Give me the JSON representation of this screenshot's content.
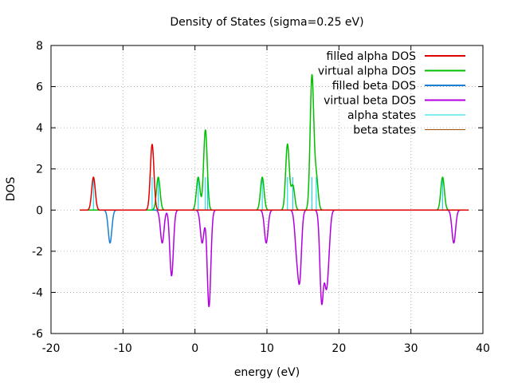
{
  "chart_data": {
    "type": "line",
    "title": "Density of States (sigma=0.25 eV)",
    "xlabel": "energy (eV)",
    "ylabel": "DOS",
    "xlim": [
      -20,
      40
    ],
    "ylim": [
      -6,
      8
    ],
    "x_ticks": [
      -20,
      -10,
      0,
      10,
      20,
      30,
      40
    ],
    "y_ticks": [
      -6,
      -4,
      -2,
      0,
      2,
      4,
      6,
      8
    ],
    "grid": "dotted",
    "legend_position": "top-right",
    "x_range_plotted": [
      -16,
      38
    ],
    "sigma": 0.25,
    "series": [
      {
        "name": "filled alpha DOS",
        "color": "#e00000",
        "style": "line",
        "peaks": [
          {
            "center": -14.1,
            "height": 1.6
          },
          {
            "center": -5.95,
            "height": 3.2
          }
        ]
      },
      {
        "name": "virtual alpha DOS",
        "color": "#00c000",
        "style": "line",
        "peaks": [
          {
            "center": -5.1,
            "height": 1.6
          },
          {
            "center": 0.45,
            "height": 1.6
          },
          {
            "center": 1.45,
            "height": 3.9
          },
          {
            "center": 9.35,
            "height": 1.6
          },
          {
            "center": 12.85,
            "height": 3.2
          },
          {
            "center": 13.6,
            "height": 1.2
          },
          {
            "center": 16.25,
            "height": 6.5
          },
          {
            "center": 16.85,
            "height": 1.6
          },
          {
            "center": 34.4,
            "height": 1.6
          }
        ]
      },
      {
        "name": "filled beta DOS",
        "color": "#1a7fd4",
        "style": "line",
        "peaks": [
          {
            "center": -11.8,
            "height": -1.6
          }
        ]
      },
      {
        "name": "virtual beta DOS",
        "color": "#b000e0",
        "style": "line",
        "peaks": [
          {
            "center": -4.55,
            "height": -1.6
          },
          {
            "center": -3.25,
            "height": -3.2
          },
          {
            "center": 1.0,
            "height": -1.6
          },
          {
            "center": 1.95,
            "height": -4.7
          },
          {
            "center": 9.9,
            "height": -1.6
          },
          {
            "center": 14.1,
            "height": -1.7
          },
          {
            "center": 14.55,
            "height": -3.2
          },
          {
            "center": 17.6,
            "height": -4.4
          },
          {
            "center": 18.2,
            "height": -3.0
          },
          {
            "center": 18.55,
            "height": -1.6
          },
          {
            "center": 35.95,
            "height": -1.6
          }
        ]
      },
      {
        "name": "alpha states",
        "color": "#00d8e8",
        "style": "impulses",
        "x": [
          -14.1,
          -5.95,
          -5.1,
          0.45,
          1.45,
          1.75,
          9.35,
          12.85,
          13.6,
          16.25,
          16.85,
          34.4
        ],
        "values": [
          1.6,
          1.6,
          1.6,
          1.6,
          1.6,
          1.6,
          1.6,
          1.6,
          1.6,
          1.6,
          1.6,
          1.6
        ]
      },
      {
        "name": "beta states",
        "color": "#a05000",
        "style": "impulses",
        "x": [],
        "values": []
      }
    ]
  }
}
